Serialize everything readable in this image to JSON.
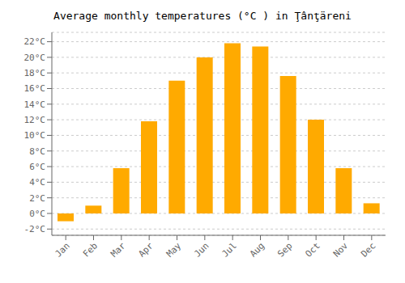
{
  "chart_data": {
    "type": "bar",
    "title": "Average monthly temperatures (°C ) in Ţânţäreni",
    "categories": [
      "Jan",
      "Feb",
      "Mar",
      "Apr",
      "May",
      "Jun",
      "Jul",
      "Aug",
      "Sep",
      "Oct",
      "Nov",
      "Dec"
    ],
    "values": [
      -1.0,
      1.0,
      5.8,
      11.8,
      17.0,
      20.0,
      21.8,
      21.4,
      17.6,
      12.0,
      5.8,
      1.3
    ],
    "color": "#FFAA00",
    "ylim": [
      -2.8,
      23.2
    ],
    "yticks": [
      {
        "value": -2,
        "label": "-2°C"
      },
      {
        "value": 0,
        "label": "0°C"
      },
      {
        "value": 2,
        "label": "2°C"
      },
      {
        "value": 4,
        "label": "4°C"
      },
      {
        "value": 6,
        "label": "6°C"
      },
      {
        "value": 8,
        "label": "8°C"
      },
      {
        "value": 10,
        "label": "10°C"
      },
      {
        "value": 12,
        "label": "12°C"
      },
      {
        "value": 14,
        "label": "14°C"
      },
      {
        "value": 16,
        "label": "16°C"
      },
      {
        "value": 18,
        "label": "18°C"
      },
      {
        "value": 20,
        "label": "20°C"
      },
      {
        "value": 22,
        "label": "22°C"
      }
    ],
    "grid": true
  }
}
